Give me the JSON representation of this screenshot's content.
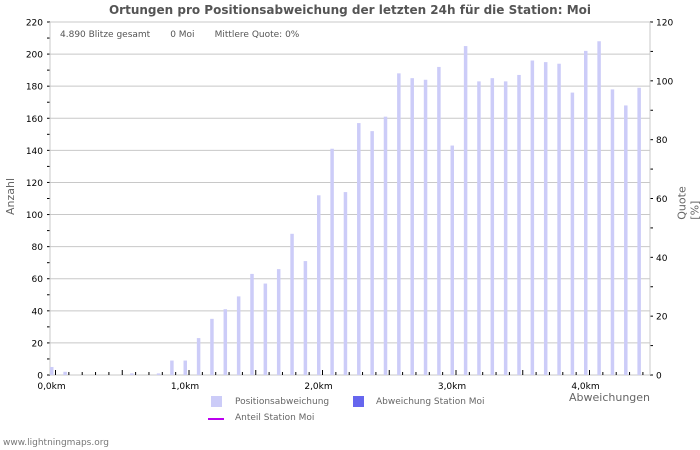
{
  "title": "Ortungen pro Positionsabweichung der letzten 24h für die Station: Moi",
  "stats": {
    "total": "4.890 Blitze gesamt",
    "station": "0 Moi",
    "quote": "Mittlere Quote: 0%"
  },
  "axes": {
    "left_label": "Anzahl",
    "right_label": "Quote [%]",
    "x_label": "Abweichungen"
  },
  "legend": {
    "bar_all": "Positionsabweichung",
    "bar_station": "Abweichung Station Moi",
    "line_station": "Anteil Station Moi"
  },
  "footer": "www.lightningmaps.org",
  "colors": {
    "bar_all": "#ccccf8",
    "bar_station": "#6666ee",
    "line_station": "#bb00ee",
    "grid": "#c8c8c8",
    "axis": "#c8c8c8"
  },
  "chart_data": {
    "type": "bar",
    "title": "Ortungen pro Positionsabweichung der letzten 24h für die Station: Moi",
    "xlabel": "Abweichungen",
    "ylabel": "Anzahl",
    "y2label": "Quote [%]",
    "ylim": [
      0,
      220
    ],
    "y2lim": [
      0,
      120
    ],
    "yticks": [
      0,
      20,
      40,
      60,
      80,
      100,
      120,
      140,
      160,
      180,
      200,
      220
    ],
    "y2ticks": [
      0,
      20,
      40,
      60,
      80,
      100,
      120
    ],
    "xticks": [
      "0,0km",
      "1,0km",
      "2,0km",
      "3,0km",
      "4,0km"
    ],
    "grid": true,
    "legend_position": "bottom",
    "categories": [
      "0.0",
      "0.1",
      "0.2",
      "0.3",
      "0.4",
      "0.5",
      "0.6",
      "0.7",
      "0.8",
      "0.9",
      "1.0",
      "1.1",
      "1.2",
      "1.3",
      "1.4",
      "1.5",
      "1.6",
      "1.7",
      "1.8",
      "1.9",
      "2.0",
      "2.1",
      "2.2",
      "2.3",
      "2.4",
      "2.5",
      "2.6",
      "2.7",
      "2.8",
      "2.9",
      "3.0",
      "3.1",
      "3.2",
      "3.3",
      "3.4",
      "3.5",
      "3.6",
      "3.7",
      "3.8",
      "3.9",
      "4.0",
      "4.1",
      "4.2",
      "4.3",
      "4.4"
    ],
    "series": [
      {
        "name": "Positionsabweichung",
        "axis": "left",
        "values": [
          5,
          2,
          0,
          0,
          0,
          0,
          1,
          0,
          1,
          9,
          9,
          23,
          35,
          41,
          49,
          63,
          57,
          66,
          88,
          71,
          112,
          141,
          114,
          157,
          152,
          161,
          188,
          185,
          184,
          192,
          143,
          205,
          183,
          185,
          183,
          187,
          196,
          195,
          194,
          176,
          202,
          208,
          178,
          168,
          179
        ]
      },
      {
        "name": "Abweichung Station Moi",
        "axis": "left",
        "values": [
          0,
          0,
          0,
          0,
          0,
          0,
          0,
          0,
          0,
          0,
          0,
          0,
          0,
          0,
          0,
          0,
          0,
          0,
          0,
          0,
          0,
          0,
          0,
          0,
          0,
          0,
          0,
          0,
          0,
          0,
          0,
          0,
          0,
          0,
          0,
          0,
          0,
          0,
          0,
          0,
          0,
          0,
          0,
          0,
          0
        ]
      },
      {
        "name": "Anteil Station Moi",
        "axis": "right",
        "type": "line",
        "values": [
          0,
          0,
          0,
          0,
          0,
          0,
          0,
          0,
          0,
          0,
          0,
          0,
          0,
          0,
          0,
          0,
          0,
          0,
          0,
          0,
          0,
          0,
          0,
          0,
          0,
          0,
          0,
          0,
          0,
          0,
          0,
          0,
          0,
          0,
          0,
          0,
          0,
          0,
          0,
          0,
          0,
          0,
          0,
          0,
          0
        ]
      }
    ]
  }
}
